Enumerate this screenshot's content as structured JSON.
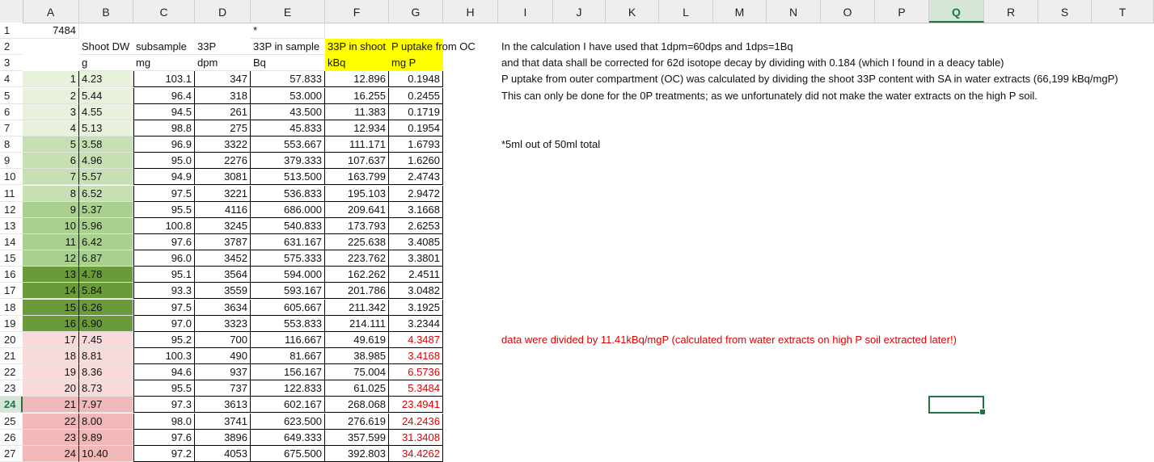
{
  "app": "Spreadsheet",
  "columns": [
    "A",
    "B",
    "C",
    "D",
    "E",
    "F",
    "G",
    "H",
    "I",
    "J",
    "K",
    "L",
    "M",
    "N",
    "O",
    "P",
    "Q",
    "R",
    "S",
    "T"
  ],
  "active_column": "Q",
  "active_row": "24",
  "colors": {
    "grid": "#e2e2e2",
    "accent": "#217346",
    "red": "#e00000",
    "highlight": "#ffff00",
    "g1": "#e7f1dc",
    "g2": "#c6e0b4",
    "g3": "#a9d08e",
    "g4": "#6a9a3a",
    "p1": "#f9dada",
    "p2": "#f0b8b8"
  },
  "rows": [
    {
      "n": "1",
      "A": "7484",
      "E": "*"
    },
    {
      "n": "2",
      "B": "Shoot DW",
      "C": "subsample",
      "D": "33P",
      "E": "33P in sample",
      "F": "33P in shoot",
      "G": "P uptake from OC",
      "I": "In the calculation I have used that 1dpm=60dps and 1dps=1Bq"
    },
    {
      "n": "3",
      "B": "g",
      "C": "mg",
      "D": "dpm",
      "E": "Bq",
      "F": "kBq",
      "G": "mg P",
      "I": "and that data shall be corrected for 62d isotope decay by dividing with 0.184 (which I found in a deacy table)"
    },
    {
      "n": "4",
      "A": "1",
      "B": "4.23",
      "C": "103.1",
      "D": "347",
      "E": "57.833",
      "F": "12.896",
      "G": "0.1948",
      "I": "P uptake from outer compartment (OC) was calculated by dividing the shoot 33P content with SA in water extracts (66,199 kBq/mgP)"
    },
    {
      "n": "5",
      "A": "2",
      "B": "5.44",
      "C": "96.4",
      "D": "318",
      "E": "53.000",
      "F": "16.255",
      "G": "0.2455",
      "I": "This can only be done for the 0P treatments; as we unfortunately did not make the water extracts on the high P soil."
    },
    {
      "n": "6",
      "A": "3",
      "B": "4.55",
      "C": "94.5",
      "D": "261",
      "E": "43.500",
      "F": "11.383",
      "G": "0.1719"
    },
    {
      "n": "7",
      "A": "4",
      "B": "5.13",
      "C": "98.8",
      "D": "275",
      "E": "45.833",
      "F": "12.934",
      "G": "0.1954"
    },
    {
      "n": "8",
      "A": "5",
      "B": "3.58",
      "C": "96.9",
      "D": "3322",
      "E": "553.667",
      "F": "111.171",
      "G": "1.6793",
      "I": "*5ml out of 50ml total"
    },
    {
      "n": "9",
      "A": "6",
      "B": "4.96",
      "C": "95.0",
      "D": "2276",
      "E": "379.333",
      "F": "107.637",
      "G": "1.6260"
    },
    {
      "n": "10",
      "A": "7",
      "B": "5.57",
      "C": "94.9",
      "D": "3081",
      "E": "513.500",
      "F": "163.799",
      "G": "2.4743"
    },
    {
      "n": "11",
      "A": "8",
      "B": "6.52",
      "C": "97.5",
      "D": "3221",
      "E": "536.833",
      "F": "195.103",
      "G": "2.9472"
    },
    {
      "n": "12",
      "A": "9",
      "B": "5.37",
      "C": "95.5",
      "D": "4116",
      "E": "686.000",
      "F": "209.641",
      "G": "3.1668"
    },
    {
      "n": "13",
      "A": "10",
      "B": "5.96",
      "C": "100.8",
      "D": "3245",
      "E": "540.833",
      "F": "173.793",
      "G": "2.6253"
    },
    {
      "n": "14",
      "A": "11",
      "B": "6.42",
      "C": "97.6",
      "D": "3787",
      "E": "631.167",
      "F": "225.638",
      "G": "3.4085"
    },
    {
      "n": "15",
      "A": "12",
      "B": "6.87",
      "C": "96.0",
      "D": "3452",
      "E": "575.333",
      "F": "223.762",
      "G": "3.3801"
    },
    {
      "n": "16",
      "A": "13",
      "B": "4.78",
      "C": "95.1",
      "D": "3564",
      "E": "594.000",
      "F": "162.262",
      "G": "2.4511"
    },
    {
      "n": "17",
      "A": "14",
      "B": "5.84",
      "C": "93.3",
      "D": "3559",
      "E": "593.167",
      "F": "201.786",
      "G": "3.0482"
    },
    {
      "n": "18",
      "A": "15",
      "B": "6.26",
      "C": "97.5",
      "D": "3634",
      "E": "605.667",
      "F": "211.342",
      "G": "3.1925"
    },
    {
      "n": "19",
      "A": "16",
      "B": "6.90",
      "C": "97.0",
      "D": "3323",
      "E": "553.833",
      "F": "214.111",
      "G": "3.2344"
    },
    {
      "n": "20",
      "A": "17",
      "B": "7.45",
      "C": "95.2",
      "D": "700",
      "E": "116.667",
      "F": "49.619",
      "G": "4.3487",
      "I": "data were divided by 11.41kBq/mgP (calculated from water extracts on high P soil extracted later!)"
    },
    {
      "n": "21",
      "A": "18",
      "B": "8.81",
      "C": "100.3",
      "D": "490",
      "E": "81.667",
      "F": "38.985",
      "G": "3.4168"
    },
    {
      "n": "22",
      "A": "19",
      "B": "8.36",
      "C": "94.6",
      "D": "937",
      "E": "156.167",
      "F": "75.004",
      "G": "6.5736"
    },
    {
      "n": "23",
      "A": "20",
      "B": "8.73",
      "C": "95.5",
      "D": "737",
      "E": "122.833",
      "F": "61.025",
      "G": "5.3484"
    },
    {
      "n": "24",
      "A": "21",
      "B": "7.97",
      "C": "97.3",
      "D": "3613",
      "E": "602.167",
      "F": "268.068",
      "G": "23.4941"
    },
    {
      "n": "25",
      "A": "22",
      "B": "8.00",
      "C": "98.0",
      "D": "3741",
      "E": "623.500",
      "F": "276.619",
      "G": "24.2436"
    },
    {
      "n": "26",
      "A": "23",
      "B": "9.89",
      "C": "97.6",
      "D": "3896",
      "E": "649.333",
      "F": "357.599",
      "G": "31.3408"
    },
    {
      "n": "27",
      "A": "24",
      "B": "10.40",
      "C": "97.2",
      "D": "4053",
      "E": "675.500",
      "F": "392.803",
      "G": "34.4262"
    }
  ]
}
